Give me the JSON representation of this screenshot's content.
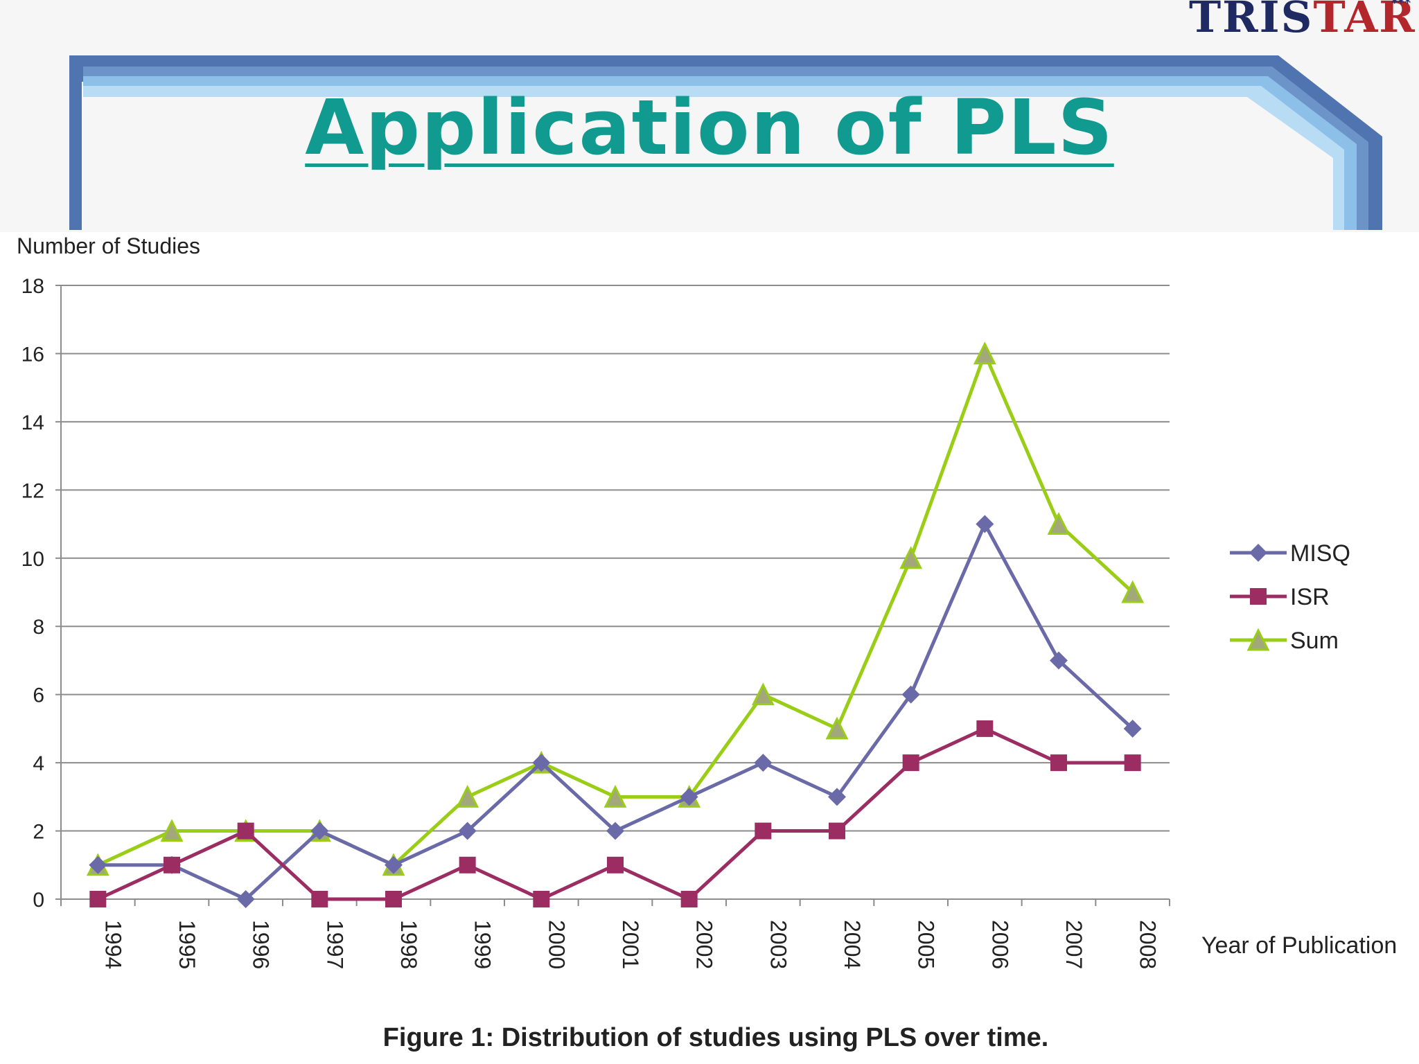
{
  "logo": {
    "part1": "TRIS",
    "part2": "TAR",
    "stars": "***"
  },
  "slide": {
    "title": "Application of PLS"
  },
  "chart_data": {
    "type": "line",
    "ylabel": "Number of Studies",
    "xlabel": "Year of Publication",
    "caption": "Figure 1: Distribution of studies using PLS over time.",
    "ylim": [
      0,
      18
    ],
    "yticks": [
      0,
      2,
      4,
      6,
      8,
      10,
      12,
      14,
      16,
      18
    ],
    "grid": true,
    "legend_position": "right",
    "categories": [
      "1994",
      "1995",
      "1996",
      "1997",
      "1998",
      "1999",
      "2000",
      "2001",
      "2002",
      "2003",
      "2004",
      "2005",
      "2006",
      "2007",
      "2008"
    ],
    "series": [
      {
        "name": "MISQ",
        "color": "#6b6aa8",
        "marker": "diamond",
        "values": [
          1,
          1,
          0,
          2,
          1,
          2,
          4,
          2,
          3,
          4,
          3,
          6,
          11,
          7,
          5
        ]
      },
      {
        "name": "ISR",
        "color": "#9b2d63",
        "marker": "square",
        "values": [
          0,
          1,
          2,
          0,
          0,
          1,
          0,
          1,
          0,
          2,
          2,
          4,
          5,
          4,
          4
        ]
      },
      {
        "name": "Sum",
        "color": "#9acd16",
        "marker": "triangle",
        "values": [
          1,
          2,
          2,
          2,
          1,
          3,
          4,
          3,
          3,
          6,
          5,
          10,
          16,
          11,
          9
        ]
      }
    ]
  }
}
